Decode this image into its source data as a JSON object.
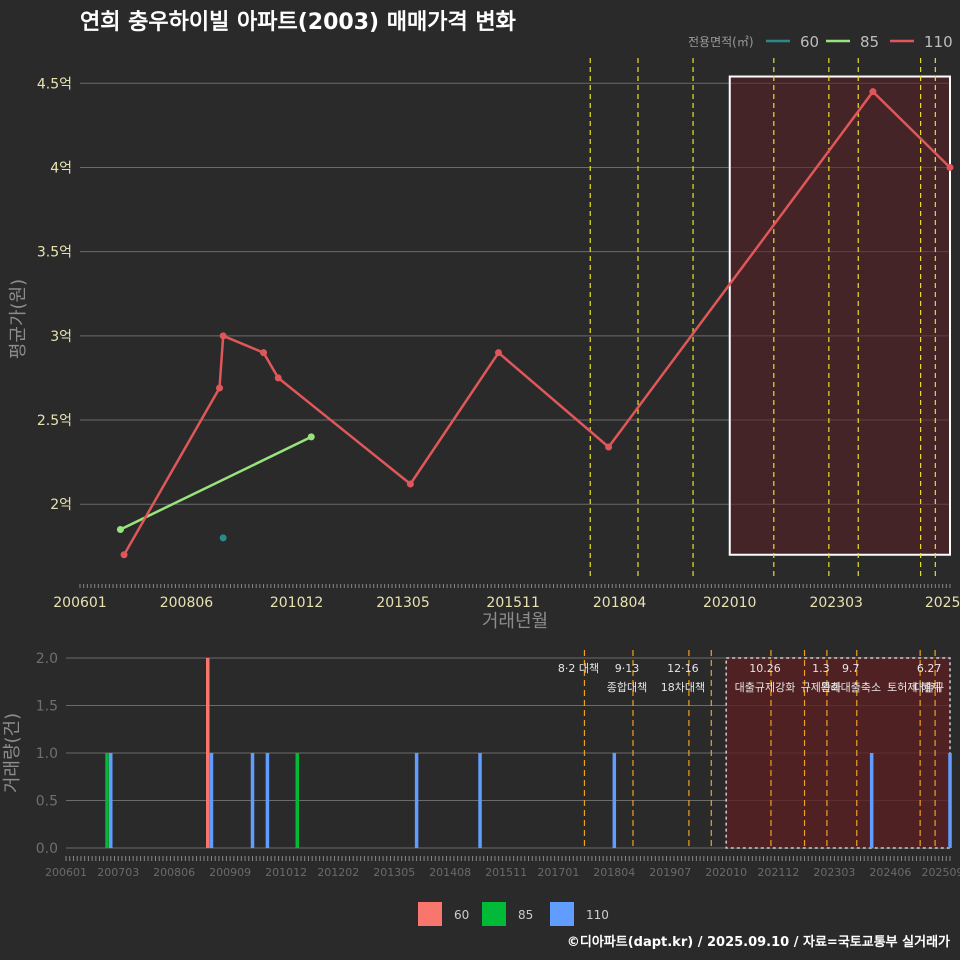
{
  "title": "연희 충우하이빌 아파트(2003) 매매가격 변화",
  "credit": "©디아파트(dapt.kr) / 2025.09.10 / 자료=국토교통부 실거래가",
  "colors": {
    "background": "#2a2a2b",
    "s60": "#2a8a8a",
    "s85": "#99e37c",
    "s110": "#e0575a",
    "bar60": "#f8766d",
    "bar85": "#00ba38",
    "bar110": "#619cff",
    "policy_top": "#e8e02a",
    "policy_bottom": "#f0a020",
    "highlight": "#5a1f22"
  },
  "chart_data": [
    {
      "type": "line",
      "title": "연희 충우하이빌 아파트(2003) 매매가격 변화",
      "xlabel": "거래년월",
      "ylabel": "평균가(원)",
      "ylim": [
        1.55,
        4.65
      ],
      "yticks": [
        2.0,
        2.5,
        3.0,
        3.5,
        4.0,
        4.5
      ],
      "ytick_labels": [
        "2억",
        "2.5억",
        "3억",
        "3.5억",
        "4억",
        "4.5억"
      ],
      "xlim": [
        2006.0,
        2025.75
      ],
      "xticks": [
        2006.0,
        2008.417,
        2010.917,
        2013.333,
        2015.833,
        2018.25,
        2020.75,
        2023.167,
        2025.583
      ],
      "xtick_labels": [
        "200601",
        "200806",
        "201012",
        "201305",
        "201511",
        "201804",
        "202010",
        "202303",
        "2025"
      ],
      "legend_title": "전용면적(㎡)",
      "legend_position": "top-right",
      "series": [
        {
          "name": "60",
          "points": [
            [
              2009.25,
              1.8
            ]
          ]
        },
        {
          "name": "85",
          "points": [
            [
              2006.917,
              1.85
            ],
            [
              2011.25,
              2.4
            ]
          ]
        },
        {
          "name": "110",
          "points": [
            [
              2007.0,
              1.7
            ],
            [
              2009.167,
              2.69
            ],
            [
              2009.25,
              3.0
            ],
            [
              2010.167,
              2.9
            ],
            [
              2010.5,
              2.75
            ],
            [
              2013.5,
              2.12
            ],
            [
              2015.5,
              2.9
            ],
            [
              2018.0,
              2.34
            ],
            [
              2024.0,
              4.45
            ],
            [
              2025.75,
              4.0
            ]
          ]
        }
      ],
      "policy_lines": [
        2017.583,
        2018.667,
        2019.917,
        2021.75,
        2023.0,
        2023.667,
        2025.083,
        2025.417
      ],
      "highlight": {
        "x0": 2020.75,
        "x1": 2025.75,
        "y0": 1.7,
        "y1": 4.54
      }
    },
    {
      "type": "bar",
      "ylabel": "거래량(건)",
      "ylim": [
        0,
        2
      ],
      "yticks": [
        0,
        0.5,
        1,
        1.5,
        2
      ],
      "ytick_labels": [
        "0.0",
        "0.5",
        "1.0",
        "1.5",
        "2.0"
      ],
      "xlim": [
        2006.0,
        2025.75
      ],
      "xticks": [
        2006.0,
        2007.167,
        2008.417,
        2009.667,
        2010.917,
        2012.083,
        2013.333,
        2014.583,
        2015.833,
        2017.0,
        2018.25,
        2019.5,
        2020.75,
        2021.917,
        2023.167,
        2024.417,
        2025.583
      ],
      "xtick_labels": [
        "200601",
        "200703",
        "200806",
        "200909",
        "201012",
        "201202",
        "201305",
        "201408",
        "201511",
        "201701",
        "201804",
        "201907",
        "202010",
        "202112",
        "202303",
        "202406",
        "202509"
      ],
      "bars": [
        {
          "x": 2006.917,
          "series": "85",
          "value": 1
        },
        {
          "x": 2007.0,
          "series": "110",
          "value": 1
        },
        {
          "x": 2009.167,
          "series": "60",
          "value": 2
        },
        {
          "x": 2009.25,
          "series": "110",
          "value": 1
        },
        {
          "x": 2010.167,
          "series": "110",
          "value": 1
        },
        {
          "x": 2010.5,
          "series": "110",
          "value": 1
        },
        {
          "x": 2011.167,
          "series": "85",
          "value": 1
        },
        {
          "x": 2013.833,
          "series": "110",
          "value": 1
        },
        {
          "x": 2015.25,
          "series": "110",
          "value": 1
        },
        {
          "x": 2018.25,
          "series": "110",
          "value": 1
        },
        {
          "x": 2024.0,
          "series": "110",
          "value": 1
        },
        {
          "x": 2025.75,
          "series": "110",
          "value": 1
        }
      ],
      "policy_lines": [
        2017.583,
        2018.667,
        2019.917,
        2020.417,
        2021.75,
        2022.5,
        2023.0,
        2023.667,
        2025.083,
        2025.417
      ],
      "policy_labels": [
        {
          "x": 2017.583,
          "date": "8·2 대책",
          "name": ""
        },
        {
          "x": 2018.667,
          "date": "9·13",
          "name": "종합대책"
        },
        {
          "x": 2019.917,
          "date": "12·16",
          "name": "18차대책"
        },
        {
          "x": 2021.75,
          "date": "10.26",
          "name": "대출규제강화"
        },
        {
          "x": 2023.0,
          "date": "1.3",
          "name": "규제완화"
        },
        {
          "x": 2023.667,
          "date": "9.7",
          "name": "특례대출축소"
        },
        {
          "x": 2025.083,
          "date": "",
          "name": "토허제 해제"
        },
        {
          "x": 2025.417,
          "date": "6.27",
          "name": "대출규"
        }
      ],
      "highlight": {
        "x0": 2020.75,
        "x1": 2025.75,
        "y0": 0,
        "y1": 2
      }
    }
  ],
  "bar_legend": [
    {
      "label": "60",
      "color": "#f8766d"
    },
    {
      "label": "85",
      "color": "#00ba38"
    },
    {
      "label": "110",
      "color": "#619cff"
    }
  ]
}
